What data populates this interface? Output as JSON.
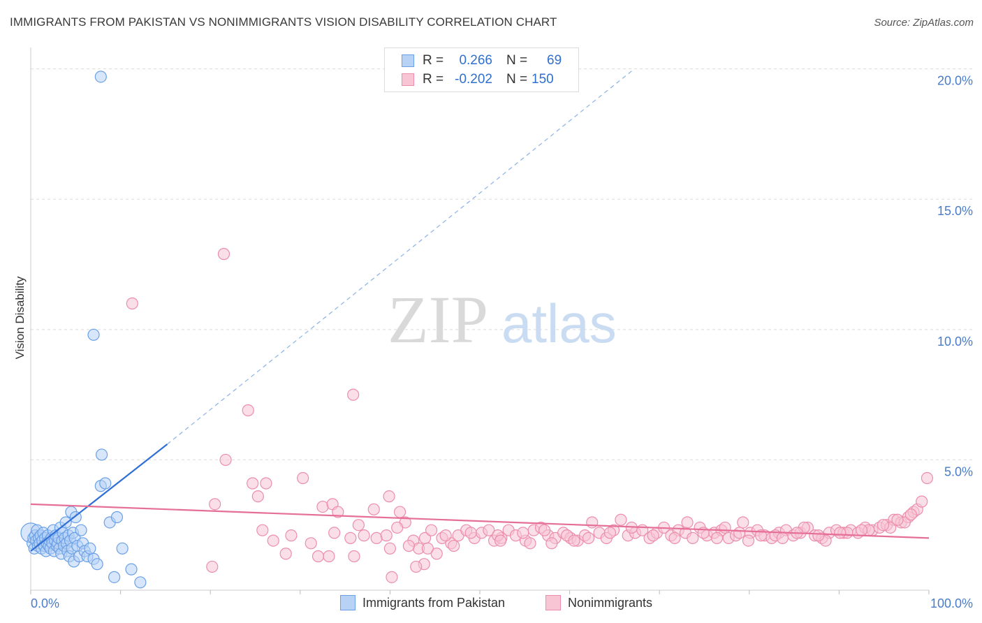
{
  "title": "IMMIGRANTS FROM PAKISTAN VS NONIMMIGRANTS VISION DISABILITY CORRELATION CHART",
  "source": "Source: ZipAtlas.com",
  "watermark": {
    "part1": "ZIP",
    "part2": "atlas"
  },
  "legend": {
    "rows": [
      {
        "r_label": "R =",
        "r_value": "0.266",
        "n_label": "N =",
        "n_value": "69"
      },
      {
        "r_label": "R =",
        "r_value": "-0.202",
        "n_label": "N =",
        "n_value": "150"
      }
    ]
  },
  "bottom_legend": {
    "series1": "Immigrants from Pakistan",
    "series2": "Nonimmigrants"
  },
  "colors": {
    "blue_fill": "#b7d2f5",
    "blue_stroke": "#6aa0e6",
    "blue_line": "#2f6fd6",
    "pink_fill": "#f8c5d5",
    "pink_stroke": "#ec8dab",
    "pink_line": "#e56f97",
    "grid": "#dcdcdc",
    "axis_text": "#4a7cc8"
  },
  "chart_data": {
    "type": "scatter",
    "title": "IMMIGRANTS FROM PAKISTAN VS NONIMMIGRANTS VISION DISABILITY CORRELATION CHART",
    "xlabel": "",
    "ylabel": "Vision Disability",
    "xlim": [
      0,
      100
    ],
    "ylim": [
      0,
      20.5
    ],
    "x_tick_labels": [
      "0.0%",
      "100.0%"
    ],
    "y_ticks": [
      5,
      10,
      15,
      20
    ],
    "y_tick_labels": [
      "5.0%",
      "10.0%",
      "15.0%",
      "20.0%"
    ],
    "series": [
      {
        "name": "Immigrants from Pakistan",
        "R": 0.266,
        "N": 69,
        "trend": {
          "x0": 0,
          "y0": 1.5,
          "x1": 15.2,
          "y1": 5.6,
          "dash_to": {
            "x": 67.2,
            "y": 20.0
          }
        },
        "points": [
          [
            0.0,
            2.2
          ],
          [
            0.2,
            1.8
          ],
          [
            0.3,
            2.0
          ],
          [
            0.4,
            1.6
          ],
          [
            0.5,
            2.1
          ],
          [
            0.6,
            1.9
          ],
          [
            0.7,
            2.3
          ],
          [
            0.8,
            1.7
          ],
          [
            0.9,
            2.0
          ],
          [
            1.0,
            1.8
          ],
          [
            1.1,
            2.1
          ],
          [
            1.2,
            1.6
          ],
          [
            1.3,
            1.9
          ],
          [
            1.4,
            2.2
          ],
          [
            1.5,
            1.7
          ],
          [
            1.6,
            2.0
          ],
          [
            1.7,
            1.5
          ],
          [
            1.8,
            1.8
          ],
          [
            1.9,
            2.1
          ],
          [
            2.0,
            1.7
          ],
          [
            2.1,
            1.9
          ],
          [
            2.2,
            1.6
          ],
          [
            2.3,
            2.0
          ],
          [
            2.4,
            1.8
          ],
          [
            2.5,
            2.3
          ],
          [
            2.6,
            1.5
          ],
          [
            2.7,
            1.9
          ],
          [
            2.8,
            2.1
          ],
          [
            2.9,
            1.7
          ],
          [
            3.0,
            1.8
          ],
          [
            3.1,
            2.0
          ],
          [
            3.2,
            1.6
          ],
          [
            3.3,
            2.4
          ],
          [
            3.4,
            1.4
          ],
          [
            3.5,
            1.9
          ],
          [
            3.6,
            2.2
          ],
          [
            3.7,
            1.7
          ],
          [
            3.8,
            2.0
          ],
          [
            3.9,
            2.6
          ],
          [
            4.0,
            1.8
          ],
          [
            4.1,
            1.5
          ],
          [
            4.2,
            2.1
          ],
          [
            4.3,
            1.3
          ],
          [
            4.4,
            1.9
          ],
          [
            4.5,
            3.0
          ],
          [
            4.6,
            1.6
          ],
          [
            4.7,
            2.2
          ],
          [
            4.8,
            1.1
          ],
          [
            4.9,
            2.0
          ],
          [
            5.0,
            2.8
          ],
          [
            5.2,
            1.7
          ],
          [
            5.4,
            1.3
          ],
          [
            5.6,
            2.3
          ],
          [
            5.8,
            1.8
          ],
          [
            6.0,
            1.5
          ],
          [
            6.3,
            1.3
          ],
          [
            6.6,
            1.6
          ],
          [
            7.0,
            1.2
          ],
          [
            7.4,
            1.0
          ],
          [
            7.8,
            4.0
          ],
          [
            7.9,
            5.2
          ],
          [
            8.3,
            4.1
          ],
          [
            8.8,
            2.6
          ],
          [
            9.3,
            0.5
          ],
          [
            9.6,
            2.8
          ],
          [
            10.2,
            1.6
          ],
          [
            11.2,
            0.8
          ],
          [
            12.2,
            0.3
          ],
          [
            7.0,
            9.8
          ],
          [
            7.8,
            19.7
          ]
        ]
      },
      {
        "name": "Nonimmigrants",
        "R": -0.202,
        "N": 150,
        "trend": {
          "x0": 0,
          "y0": 3.3,
          "x1": 100,
          "y1": 2.0
        },
        "points": [
          [
            21.5,
            12.9
          ],
          [
            11.3,
            11.0
          ],
          [
            35.9,
            7.5
          ],
          [
            24.2,
            6.9
          ],
          [
            21.7,
            5.0
          ],
          [
            30.3,
            4.3
          ],
          [
            26.2,
            4.1
          ],
          [
            24.7,
            4.1
          ],
          [
            25.3,
            3.6
          ],
          [
            20.5,
            3.3
          ],
          [
            32.5,
            3.2
          ],
          [
            33.6,
            3.3
          ],
          [
            34.2,
            3.0
          ],
          [
            38.2,
            3.1
          ],
          [
            39.9,
            3.6
          ],
          [
            41.1,
            3.0
          ],
          [
            41.7,
            2.6
          ],
          [
            36.5,
            2.5
          ],
          [
            25.8,
            2.3
          ],
          [
            27.0,
            1.9
          ],
          [
            29.0,
            2.1
          ],
          [
            31.2,
            1.8
          ],
          [
            33.8,
            2.2
          ],
          [
            35.6,
            2.0
          ],
          [
            37.1,
            2.1
          ],
          [
            38.5,
            2.0
          ],
          [
            39.6,
            2.1
          ],
          [
            40.8,
            2.4
          ],
          [
            42.6,
            1.9
          ],
          [
            43.9,
            2.0
          ],
          [
            44.6,
            2.3
          ],
          [
            45.8,
            2.0
          ],
          [
            46.8,
            1.8
          ],
          [
            47.6,
            2.1
          ],
          [
            48.5,
            2.3
          ],
          [
            49.4,
            2.0
          ],
          [
            50.2,
            2.2
          ],
          [
            51.0,
            2.3
          ],
          [
            51.6,
            1.9
          ],
          [
            52.4,
            2.0
          ],
          [
            53.2,
            2.3
          ],
          [
            54.0,
            2.1
          ],
          [
            55.1,
            1.9
          ],
          [
            56.0,
            2.3
          ],
          [
            56.8,
            2.4
          ],
          [
            57.6,
            2.1
          ],
          [
            58.4,
            2.0
          ],
          [
            59.3,
            2.2
          ],
          [
            60.1,
            2.0
          ],
          [
            60.9,
            1.9
          ],
          [
            61.7,
            2.1
          ],
          [
            62.5,
            2.6
          ],
          [
            63.3,
            2.2
          ],
          [
            64.1,
            2.0
          ],
          [
            64.9,
            2.3
          ],
          [
            65.7,
            2.7
          ],
          [
            66.5,
            2.1
          ],
          [
            67.3,
            2.2
          ],
          [
            68.1,
            2.3
          ],
          [
            68.9,
            2.0
          ],
          [
            69.7,
            2.2
          ],
          [
            70.5,
            2.4
          ],
          [
            71.3,
            2.1
          ],
          [
            72.1,
            2.3
          ],
          [
            72.9,
            2.2
          ],
          [
            73.7,
            2.0
          ],
          [
            74.5,
            2.4
          ],
          [
            75.3,
            2.1
          ],
          [
            76.1,
            2.2
          ],
          [
            76.9,
            2.3
          ],
          [
            77.7,
            2.0
          ],
          [
            78.5,
            2.1
          ],
          [
            79.3,
            2.6
          ],
          [
            80.1,
            2.2
          ],
          [
            80.9,
            2.3
          ],
          [
            81.7,
            2.1
          ],
          [
            82.5,
            2.0
          ],
          [
            83.3,
            2.2
          ],
          [
            84.1,
            2.3
          ],
          [
            84.9,
            2.1
          ],
          [
            85.7,
            2.2
          ],
          [
            86.5,
            2.4
          ],
          [
            87.3,
            2.1
          ],
          [
            88.1,
            2.0
          ],
          [
            88.9,
            2.2
          ],
          [
            89.7,
            2.3
          ],
          [
            90.5,
            2.2
          ],
          [
            91.3,
            2.3
          ],
          [
            92.1,
            2.2
          ],
          [
            92.9,
            2.4
          ],
          [
            93.7,
            2.3
          ],
          [
            94.5,
            2.4
          ],
          [
            95.3,
            2.5
          ],
          [
            96.1,
            2.7
          ],
          [
            96.9,
            2.6
          ],
          [
            97.7,
            2.8
          ],
          [
            98.3,
            3.0
          ],
          [
            98.7,
            3.1
          ],
          [
            99.2,
            3.4
          ],
          [
            99.8,
            4.3
          ],
          [
            73.1,
            2.6
          ],
          [
            76.4,
            2.0
          ],
          [
            79.9,
            1.9
          ],
          [
            82.9,
            2.1
          ],
          [
            86.1,
            2.4
          ],
          [
            88.5,
            1.9
          ],
          [
            90.9,
            2.2
          ],
          [
            93.3,
            2.3
          ],
          [
            95.7,
            2.4
          ],
          [
            97.3,
            2.6
          ],
          [
            96.5,
            2.7
          ],
          [
            98.0,
            2.9
          ],
          [
            94.9,
            2.5
          ],
          [
            92.5,
            2.3
          ],
          [
            90.1,
            2.2
          ],
          [
            87.7,
            2.1
          ],
          [
            85.3,
            2.2
          ],
          [
            83.7,
            2.0
          ],
          [
            81.3,
            2.1
          ],
          [
            78.9,
            2.2
          ],
          [
            77.3,
            2.4
          ],
          [
            74.9,
            2.2
          ],
          [
            71.7,
            2.0
          ],
          [
            69.3,
            2.1
          ],
          [
            66.9,
            2.4
          ],
          [
            64.5,
            2.2
          ],
          [
            62.1,
            2.0
          ],
          [
            59.7,
            2.1
          ],
          [
            57.2,
            2.3
          ],
          [
            54.8,
            2.2
          ],
          [
            52.0,
            2.1
          ],
          [
            49.0,
            2.2
          ],
          [
            46.2,
            2.1
          ],
          [
            43.2,
            1.6
          ],
          [
            42.1,
            1.7
          ],
          [
            45.2,
            1.4
          ],
          [
            44.2,
            1.6
          ],
          [
            47.1,
            1.7
          ],
          [
            52.3,
            1.9
          ],
          [
            55.6,
            1.8
          ],
          [
            58.0,
            1.8
          ],
          [
            60.5,
            1.9
          ],
          [
            28.4,
            1.4
          ],
          [
            32.0,
            1.3
          ],
          [
            33.2,
            1.3
          ],
          [
            36.0,
            1.3
          ],
          [
            40.0,
            1.6
          ],
          [
            43.8,
            1.0
          ],
          [
            42.9,
            0.9
          ],
          [
            20.2,
            0.9
          ],
          [
            40.2,
            0.5
          ]
        ]
      }
    ]
  }
}
